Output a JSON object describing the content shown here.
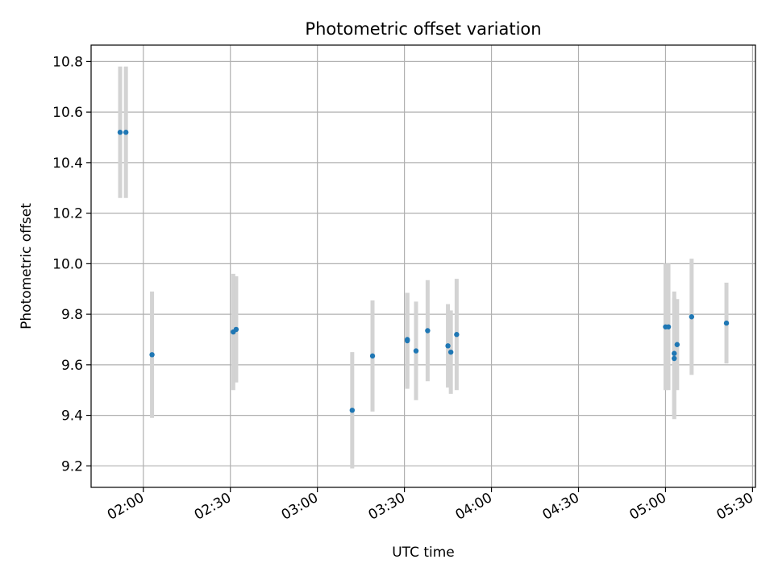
{
  "chart_data": {
    "type": "scatter",
    "title": "Photometric offset variation",
    "xlabel": "UTC time",
    "ylabel": "Photometric offset",
    "x_unit": "UTC time (HH:MM)",
    "xlim": [
      "01:42",
      "05:31"
    ],
    "ylim": [
      9.115,
      10.865
    ],
    "grid": true,
    "x_ticks": [
      "02:00",
      "02:30",
      "03:00",
      "03:30",
      "04:00",
      "04:30",
      "05:00",
      "05:30"
    ],
    "y_ticks": [
      9.2,
      9.4,
      9.6,
      9.8,
      10.0,
      10.2,
      10.4,
      10.6,
      10.8
    ],
    "y_tick_labels": [
      "9.2",
      "9.4",
      "9.6",
      "9.8",
      "10.0",
      "10.2",
      "10.4",
      "10.6",
      "10.8"
    ],
    "marker_color": "#1f77b4",
    "errorbar_color": "#d3d3d3",
    "points": [
      {
        "x": "01:52",
        "y": 10.52,
        "err": 0.26
      },
      {
        "x": "01:54",
        "y": 10.52,
        "err": 0.26
      },
      {
        "x": "02:03",
        "y": 9.64,
        "err": 0.25
      },
      {
        "x": "02:31",
        "y": 9.73,
        "err": 0.23
      },
      {
        "x": "02:32",
        "y": 9.74,
        "err": 0.21
      },
      {
        "x": "03:12",
        "y": 9.42,
        "err": 0.23
      },
      {
        "x": "03:19",
        "y": 9.635,
        "err": 0.22
      },
      {
        "x": "03:31",
        "y": 9.7,
        "err": 0.185
      },
      {
        "x": "03:31",
        "y": 9.695,
        "err": 0.19
      },
      {
        "x": "03:34",
        "y": 9.655,
        "err": 0.195
      },
      {
        "x": "03:38",
        "y": 9.735,
        "err": 0.2
      },
      {
        "x": "03:45",
        "y": 9.675,
        "err": 0.165
      },
      {
        "x": "03:46",
        "y": 9.65,
        "err": 0.165
      },
      {
        "x": "03:48",
        "y": 9.72,
        "err": 0.22
      },
      {
        "x": "05:00",
        "y": 9.75,
        "err": 0.25
      },
      {
        "x": "05:01",
        "y": 9.75,
        "err": 0.25
      },
      {
        "x": "05:03",
        "y": 9.645,
        "err": 0.245
      },
      {
        "x": "05:03",
        "y": 9.625,
        "err": 0.24
      },
      {
        "x": "05:04",
        "y": 9.68,
        "err": 0.18
      },
      {
        "x": "05:09",
        "y": 9.79,
        "err": 0.23
      },
      {
        "x": "05:21",
        "y": 9.765,
        "err": 0.16
      }
    ]
  }
}
